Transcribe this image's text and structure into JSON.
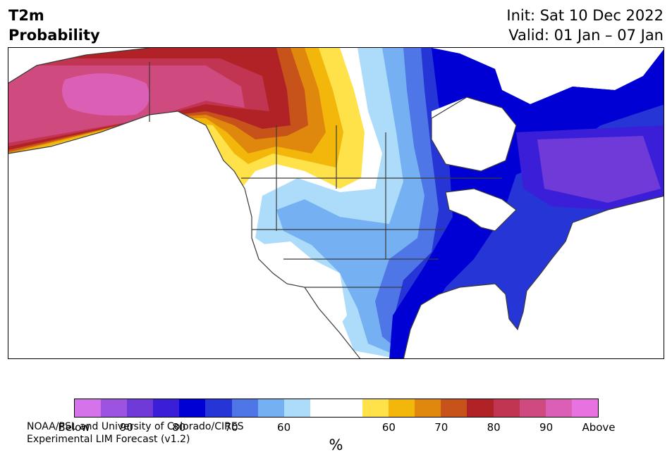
{
  "title": {
    "line1": "T2m",
    "line2": "Probability"
  },
  "subtitle": {
    "init": "Init: Sat 10 Dec 2022",
    "valid": "Valid: 01 Jan – 07 Jan"
  },
  "credit": {
    "line1": "NOAA/PSL and University of Colorado/CIRES",
    "line2": "Experimental LIM Forecast (v1.2)"
  },
  "colorbar": {
    "colors": [
      "#d473ea",
      "#9b53e0",
      "#6f3ad8",
      "#3a1ed8",
      "#0000d4",
      "#2636d6",
      "#4f76e6",
      "#75b0f2",
      "#acdcfa",
      "#ffffff",
      "#ffffff",
      "#ffe14a",
      "#f2b70a",
      "#df880d",
      "#c7531a",
      "#b12227",
      "#c23552",
      "#cf4a7e",
      "#db5fb4",
      "#e673e0"
    ],
    "tick_labels": [
      "Below",
      "90",
      "80",
      "70",
      "60",
      "60",
      "70",
      "80",
      "90",
      "Above"
    ],
    "unit": "%"
  },
  "map_colors": {
    "land": "#ffffff",
    "water": "#ffffff",
    "border": "#3a3a3a"
  }
}
